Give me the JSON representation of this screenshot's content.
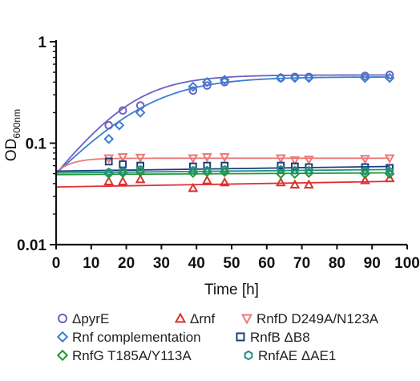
{
  "chart_data": {
    "type": "scatter",
    "title": "",
    "xlabel": "Time [h]",
    "ylabel_main": "OD",
    "ylabel_sub": "600nm",
    "xlim": [
      0,
      100
    ],
    "ylim": [
      0.01,
      1
    ],
    "y_scale": "log",
    "x_ticks": [
      0,
      10,
      20,
      30,
      40,
      50,
      60,
      70,
      80,
      90,
      100
    ],
    "x_tick_labels": [
      "0",
      "10",
      "20",
      "30",
      "40",
      "50",
      "60",
      "70",
      "80",
      "90",
      "100"
    ],
    "y_ticks": [
      0.01,
      0.1,
      1
    ],
    "y_tick_labels": [
      "0.01",
      "0.1",
      "1"
    ],
    "grid": false,
    "legend_position": "bottom",
    "series": [
      {
        "name": "ΔpyrE",
        "color": "#6b62c4",
        "marker": "circle",
        "points": [
          [
            15,
            0.15
          ],
          [
            19,
            0.21
          ],
          [
            24,
            0.235
          ],
          [
            39,
            0.33
          ],
          [
            43,
            0.37
          ],
          [
            48,
            0.4
          ],
          [
            64,
            0.44
          ],
          [
            68,
            0.45
          ],
          [
            72,
            0.45
          ],
          [
            88,
            0.46
          ],
          [
            95,
            0.47
          ]
        ],
        "fit": {
          "y0": 0.05,
          "K": 0.47,
          "r": 0.105
        }
      },
      {
        "name": "Rnf complementation",
        "color": "#3a7fd0",
        "marker": "diamond",
        "points": [
          [
            15,
            0.11
          ],
          [
            18,
            0.15
          ],
          [
            24,
            0.2
          ],
          [
            39,
            0.36
          ],
          [
            43,
            0.4
          ],
          [
            48,
            0.42
          ],
          [
            64,
            0.44
          ],
          [
            68,
            0.44
          ],
          [
            72,
            0.44
          ],
          [
            88,
            0.44
          ],
          [
            95,
            0.44
          ]
        ],
        "fit": {
          "y0": 0.05,
          "K": 0.45,
          "r": 0.085
        }
      },
      {
        "name": "Δrnf",
        "color": "#e03030",
        "marker": "triangle-up",
        "points": [
          [
            15,
            0.042
          ],
          [
            19,
            0.042
          ],
          [
            24,
            0.044
          ],
          [
            39,
            0.036
          ],
          [
            43,
            0.043
          ],
          [
            48,
            0.041
          ],
          [
            64,
            0.041
          ],
          [
            68,
            0.039
          ],
          [
            72,
            0.039
          ],
          [
            88,
            0.043
          ],
          [
            95,
            0.045
          ]
        ],
        "fit": {
          "line": [
            [
              0,
              0.037
            ],
            [
              95,
              0.042
            ]
          ]
        }
      },
      {
        "name": "RnfD D249A/N123A",
        "color": "#ec7a7a",
        "marker": "triangle-down",
        "points": [
          [
            15,
            0.071
          ],
          [
            19,
            0.073
          ],
          [
            24,
            0.072
          ],
          [
            39,
            0.071
          ],
          [
            43,
            0.073
          ],
          [
            48,
            0.073
          ],
          [
            64,
            0.071
          ],
          [
            68,
            0.068
          ],
          [
            72,
            0.069
          ],
          [
            88,
            0.07
          ],
          [
            95,
            0.071
          ]
        ],
        "fit": {
          "y0": 0.052,
          "K": 0.071,
          "r": 0.25
        }
      },
      {
        "name": "RnfB ΔB8",
        "color": "#1c3f7a",
        "marker": "square",
        "points": [
          [
            15,
            0.066
          ],
          [
            19,
            0.062
          ],
          [
            24,
            0.06
          ],
          [
            39,
            0.059
          ],
          [
            43,
            0.06
          ],
          [
            48,
            0.06
          ],
          [
            64,
            0.06
          ],
          [
            68,
            0.059
          ],
          [
            72,
            0.058
          ],
          [
            88,
            0.058
          ],
          [
            95,
            0.057
          ]
        ],
        "fit": {
          "line": [
            [
              0,
              0.053
            ],
            [
              95,
              0.059
            ]
          ]
        }
      },
      {
        "name": "RnfG T185A/Y113A",
        "color": "#22992e",
        "marker": "diamond",
        "points": [
          [
            15,
            0.05
          ],
          [
            19,
            0.051
          ],
          [
            24,
            0.052
          ],
          [
            39,
            0.051
          ],
          [
            43,
            0.052
          ],
          [
            48,
            0.052
          ],
          [
            64,
            0.05
          ],
          [
            68,
            0.05
          ],
          [
            72,
            0.051
          ],
          [
            88,
            0.05
          ],
          [
            95,
            0.05
          ]
        ],
        "fit": {
          "line": [
            [
              0,
              0.049
            ],
            [
              95,
              0.051
            ]
          ]
        }
      },
      {
        "name": "RnfAE ΔAE1",
        "color": "#1f8f8a",
        "marker": "hexagon",
        "points": [
          [
            15,
            0.052
          ],
          [
            19,
            0.053
          ],
          [
            24,
            0.055
          ],
          [
            39,
            0.054
          ],
          [
            43,
            0.054
          ],
          [
            48,
            0.055
          ],
          [
            64,
            0.055
          ],
          [
            68,
            0.054
          ],
          [
            72,
            0.054
          ],
          [
            88,
            0.053
          ],
          [
            95,
            0.053
          ]
        ],
        "fit": {
          "line": [
            [
              0,
              0.051
            ],
            [
              95,
              0.055
            ]
          ]
        }
      }
    ],
    "legend_order": [
      [
        "ΔpyrE",
        "Δrnf",
        "RnfD D249A/N123A"
      ],
      [
        "Rnf complementation",
        "RnfB ΔB8"
      ],
      [
        "RnfG T185A/Y113A",
        "RnfAE ΔAE1"
      ]
    ]
  }
}
